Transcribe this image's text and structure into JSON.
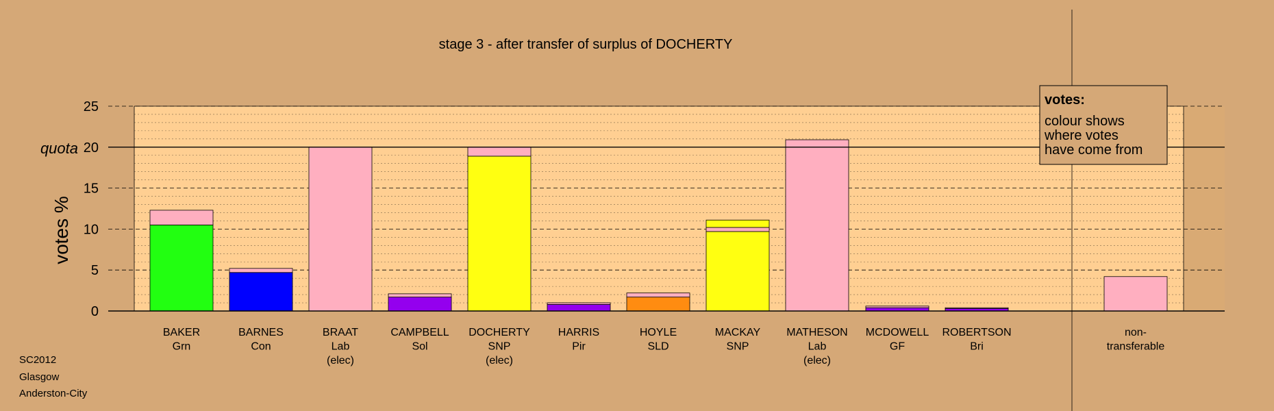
{
  "chart_data": {
    "type": "bar",
    "title": "stage 3 - after transfer of surplus of DOCHERTY",
    "ylabel": "votes %",
    "ylim": [
      0,
      25
    ],
    "yticks": [
      0,
      5,
      10,
      15,
      20,
      25
    ],
    "quota_label": "quota",
    "quota_value": 20,
    "grid": true,
    "legend": {
      "position": "top-right",
      "title": "votes:",
      "lines": [
        "colour shows",
        "where votes",
        "have come from"
      ]
    },
    "candidates": [
      {
        "name": "BAKER",
        "party": "Grn",
        "elected": "",
        "segments": [
          {
            "value": 10.5,
            "color": "#22ff11"
          },
          {
            "value": 1.8,
            "color": "#ffafc0"
          }
        ]
      },
      {
        "name": "BARNES",
        "party": "Con",
        "elected": "",
        "segments": [
          {
            "value": 4.7,
            "color": "#0000ff"
          },
          {
            "value": 0.5,
            "color": "#ffafc0"
          }
        ]
      },
      {
        "name": "BRAAT",
        "party": "Lab",
        "elected": "(elec)",
        "segments": [
          {
            "value": 20.0,
            "color": "#ffafc0"
          }
        ]
      },
      {
        "name": "CAMPBELL",
        "party": "Sol",
        "elected": "",
        "segments": [
          {
            "value": 1.7,
            "color": "#9400ee"
          },
          {
            "value": 0.4,
            "color": "#ffafc0"
          }
        ]
      },
      {
        "name": "DOCHERTY",
        "party": "SNP",
        "elected": "(elec)",
        "segments": [
          {
            "value": 18.9,
            "color": "#ffff11"
          },
          {
            "value": 1.1,
            "color": "#ffafc0"
          }
        ]
      },
      {
        "name": "HARRIS",
        "party": "Pir",
        "elected": "",
        "segments": [
          {
            "value": 0.8,
            "color": "#9400ee"
          },
          {
            "value": 0.2,
            "color": "#ffafc0"
          }
        ]
      },
      {
        "name": "HOYLE",
        "party": "SLD",
        "elected": "",
        "segments": [
          {
            "value": 1.7,
            "color": "#ff8c11"
          },
          {
            "value": 0.5,
            "color": "#ffafc0"
          }
        ]
      },
      {
        "name": "MACKAY",
        "party": "SNP",
        "elected": "",
        "segments": [
          {
            "value": 9.7,
            "color": "#ffff11"
          },
          {
            "value": 0.5,
            "color": "#ffafc0"
          },
          {
            "value": 0.9,
            "color": "#ffff11"
          }
        ]
      },
      {
        "name": "MATHESON",
        "party": "Lab",
        "elected": "(elec)",
        "segments": [
          {
            "value": 20.9,
            "color": "#ffafc0"
          }
        ]
      },
      {
        "name": "MCDOWELL",
        "party": "GF",
        "elected": "",
        "segments": [
          {
            "value": 0.4,
            "color": "#9400ee"
          },
          {
            "value": 0.2,
            "color": "#ffafc0"
          }
        ]
      },
      {
        "name": "ROBERTSON",
        "party": "Bri",
        "elected": "",
        "segments": [
          {
            "value": 0.3,
            "color": "#9400ee"
          },
          {
            "value": 0.1,
            "color": "#ffafc0"
          }
        ]
      }
    ],
    "nontransferable": {
      "label_lines": [
        "non-",
        "transferable"
      ],
      "value": 4.2,
      "color": "#ffafc0"
    }
  },
  "footer": {
    "lines": [
      "SC2012",
      "Glasgow",
      "Anderston-City"
    ]
  },
  "colors": {
    "background": "#d5a877",
    "plot_area": "#ffcf92",
    "plot_shade": "#d9aa74"
  }
}
